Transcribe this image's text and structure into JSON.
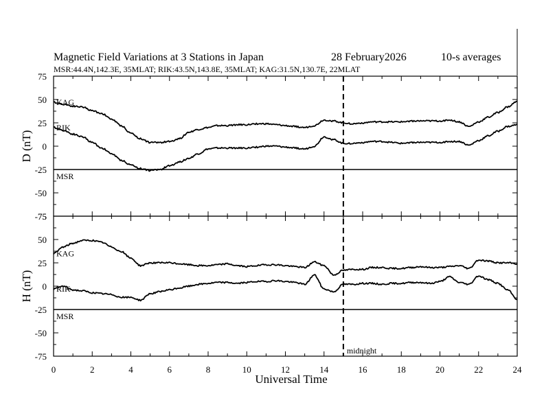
{
  "chart_data": {
    "type": "line",
    "title_left": "Magnetic Field Variations at 3 Stations in Japan",
    "title_date": "28 February2026",
    "title_right": "10-s averages",
    "subtitle": "MSR:44.4N,142.3E, 35MLAT;  RIK:43.5N,143.8E, 35MLAT;  KAG:31.5N,130.7E, 22MLAT",
    "xlabel": "Universal Time",
    "xlim": [
      0,
      24
    ],
    "x_ticks": [
      "0",
      "2",
      "4",
      "6",
      "8",
      "10",
      "12",
      "14",
      "16",
      "18",
      "20",
      "22",
      "24"
    ],
    "midnight_ut": 15,
    "midnight_label": "midnight",
    "panels": [
      {
        "id": "D",
        "ylabel": "D (nT)",
        "ylim": [
          -75,
          75
        ],
        "y_ticks": [
          "75",
          "50",
          "25",
          "0",
          "-25",
          "-50",
          "-75"
        ],
        "series": [
          {
            "name": "KAG",
            "x": [
              0,
              0.5,
              1,
              1.5,
              2,
              2.5,
              3,
              3.5,
              4,
              4.5,
              5,
              5.5,
              6,
              6.5,
              7,
              7.5,
              8,
              8.5,
              9,
              9.5,
              10,
              10.5,
              11,
              11.5,
              12,
              12.5,
              13,
              13.5,
              14,
              14.5,
              15,
              15.5,
              16,
              16.5,
              17,
              17.5,
              18,
              18.5,
              19,
              19.5,
              20,
              20.5,
              21,
              21.5,
              22,
              22.5,
              23,
              23.5,
              24
            ],
            "values": [
              47,
              45,
              43,
              42,
              38,
              35,
              29,
              22,
              14,
              8,
              4,
              4,
              5,
              8,
              15,
              18,
              20,
              22,
              22,
              23,
              23,
              24,
              24,
              23,
              22,
              21,
              20,
              22,
              28,
              27,
              25,
              24,
              25,
              26,
              26,
              26,
              26,
              27,
              27,
              27,
              27,
              28,
              26,
              21,
              26,
              31,
              36,
              42,
              48
            ]
          },
          {
            "name": "RIK",
            "x": [
              0,
              0.5,
              1,
              1.5,
              2,
              2.5,
              3,
              3.5,
              4,
              4.5,
              5,
              5.5,
              6,
              6.5,
              7,
              7.5,
              8,
              8.5,
              9,
              9.5,
              10,
              10.5,
              11,
              11.5,
              12,
              12.5,
              13,
              13.5,
              14,
              14.5,
              15,
              15.5,
              16,
              16.5,
              17,
              17.5,
              18,
              18.5,
              19,
              19.5,
              20,
              20.5,
              21,
              21.5,
              22,
              22.5,
              23,
              23.5,
              24
            ],
            "values": [
              20,
              17,
              13,
              10,
              4,
              -2,
              -8,
              -15,
              -20,
              -24,
              -26,
              -25,
              -21,
              -17,
              -13,
              -8,
              -3,
              -2,
              -2,
              -2,
              -2,
              -1,
              0,
              0,
              -1,
              -2,
              -3,
              0,
              10,
              7,
              3,
              3,
              4,
              5,
              5,
              4,
              3,
              4,
              4,
              4,
              4,
              5,
              5,
              1,
              6,
              11,
              16,
              21,
              23
            ]
          },
          {
            "name": "MSR",
            "x": [
              0,
              24
            ],
            "values": [
              -25,
              -25
            ]
          }
        ]
      },
      {
        "id": "H",
        "ylabel": "H (nT)",
        "ylim": [
          -75,
          75
        ],
        "y_ticks": [
          "75",
          "50",
          "25",
          "0",
          "-25",
          "-50",
          "-75"
        ],
        "series": [
          {
            "name": "KAG",
            "x": [
              0,
              0.5,
              1,
              1.5,
              2,
              2.5,
              3,
              3.5,
              4,
              4.5,
              5,
              5.5,
              6,
              6.5,
              7,
              7.5,
              8,
              8.5,
              9,
              9.5,
              10,
              10.5,
              11,
              11.5,
              12,
              12.5,
              13,
              13.5,
              14,
              14.5,
              15,
              15.5,
              16,
              16.5,
              17,
              17.5,
              18,
              18.5,
              19,
              19.5,
              20,
              20.5,
              21,
              21.5,
              22,
              22.5,
              23,
              23.5,
              24
            ],
            "values": [
              35,
              42,
              46,
              49,
              49,
              47,
              42,
              37,
              30,
              22,
              25,
              25,
              25,
              24,
              23,
              22,
              22,
              23,
              24,
              22,
              21,
              22,
              23,
              23,
              22,
              21,
              20,
              26,
              22,
              12,
              17,
              18,
              18,
              20,
              20,
              19,
              19,
              20,
              21,
              20,
              20,
              21,
              22,
              19,
              28,
              27,
              25,
              25,
              24
            ]
          },
          {
            "name": "RIK",
            "x": [
              0,
              0.5,
              1,
              1.5,
              2,
              2.5,
              3,
              3.5,
              4,
              4.5,
              5,
              5.5,
              6,
              6.5,
              7,
              7.5,
              8,
              8.5,
              9,
              9.5,
              10,
              10.5,
              11,
              11.5,
              12,
              12.5,
              13,
              13.5,
              14,
              14.5,
              15,
              15.5,
              16,
              16.5,
              17,
              17.5,
              18,
              18.5,
              19,
              19.5,
              20,
              20.5,
              21,
              21.5,
              22,
              22.5,
              23,
              23.5,
              24
            ],
            "values": [
              -3,
              0,
              -4,
              -5,
              -7,
              -8,
              -9,
              -12,
              -12,
              -15,
              -8,
              -6,
              -4,
              -2,
              0,
              2,
              3,
              4,
              4,
              3,
              4,
              5,
              5,
              6,
              5,
              4,
              2,
              12,
              -3,
              -6,
              2,
              2,
              3,
              3,
              2,
              3,
              3,
              4,
              4,
              3,
              5,
              10,
              4,
              2,
              11,
              7,
              3,
              -4,
              -14
            ]
          },
          {
            "name": "MSR",
            "x": [
              0,
              24
            ],
            "values": [
              -25,
              -25
            ]
          }
        ]
      }
    ]
  }
}
